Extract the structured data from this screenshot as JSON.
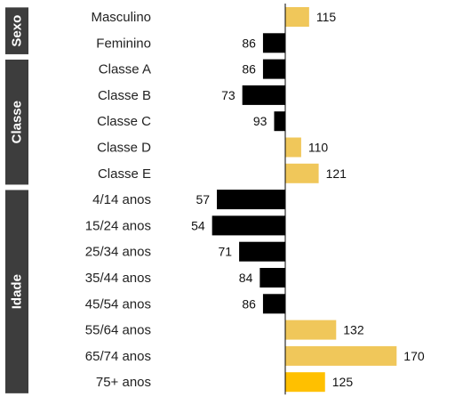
{
  "chart_data": {
    "type": "bar",
    "orientation": "horizontal",
    "baseline": 100,
    "categories": [
      "Masculino",
      "Feminino",
      "Classe A",
      "Classe B",
      "Classe C",
      "Classe D",
      "Classe E",
      "4/14 anos",
      "15/24 anos",
      "25/34 anos",
      "35/44 anos",
      "45/54 anos",
      "55/64 anos",
      "65/74 anos",
      "75+ anos"
    ],
    "values": [
      115,
      86,
      86,
      73,
      93,
      110,
      121,
      57,
      54,
      71,
      84,
      86,
      132,
      170,
      125
    ],
    "value_labels": [
      "115",
      "86",
      "86",
      "73",
      "93",
      "110",
      "121",
      "57",
      "54",
      "71",
      "84",
      "86",
      "132",
      "170",
      "125"
    ],
    "groups": [
      {
        "label": "Sexo",
        "count": 2
      },
      {
        "label": "Classe",
        "count": 5
      },
      {
        "label": "Idade",
        "count": 8
      }
    ],
    "colors": {
      "above": "#f0c75a",
      "below": "#000000",
      "highlight": "#ffc000",
      "group_box": "#3d3d3d",
      "axis": "#000000"
    },
    "highlight_index": 14
  }
}
